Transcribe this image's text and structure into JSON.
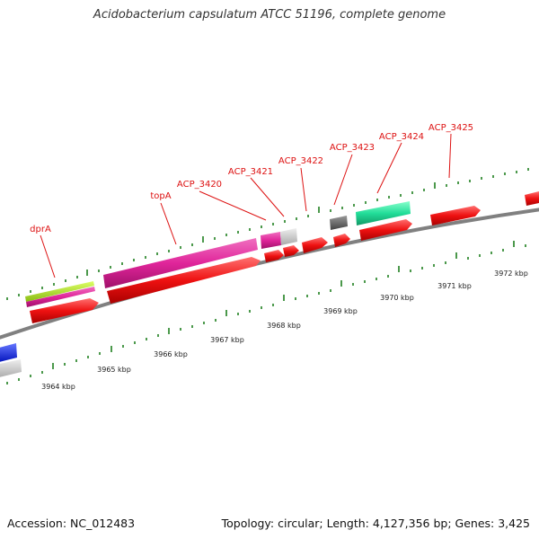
{
  "title": "Acidobacterium capsulatum ATCC 51196, complete genome",
  "footer": {
    "accession": "Accession: NC_012483",
    "summary": "Topology: circular; Length: 4,127,356 bp; Genes: 3,425"
  },
  "gene_labels": [
    "dprA",
    "topA",
    "ACP_3420",
    "ACP_3421",
    "ACP_3422",
    "ACP_3423",
    "ACP_3424",
    "ACP_3425"
  ],
  "kbp_labels": [
    "3964 kbp",
    "3965 kbp",
    "3966 kbp",
    "3967 kbp",
    "3968 kbp",
    "3969 kbp",
    "3970 kbp",
    "3971 kbp",
    "3972 kbp"
  ],
  "colors": {
    "backbone": "#888888",
    "cds": "#ee1111",
    "label": "#dd1111",
    "tick": "#117711",
    "magenta": "#e0259a",
    "lime": "#aadd22",
    "teal": "#22dd99",
    "grey": "#c8c8c8",
    "dark_grey": "#666666",
    "blue": "#1122ee"
  }
}
